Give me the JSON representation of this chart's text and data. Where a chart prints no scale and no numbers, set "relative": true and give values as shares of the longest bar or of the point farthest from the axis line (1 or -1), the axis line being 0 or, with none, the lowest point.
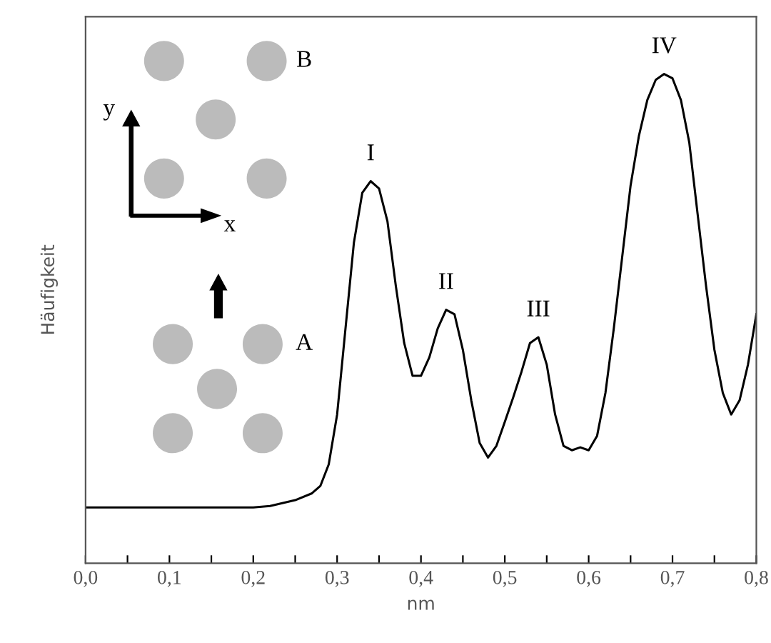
{
  "chart_data": {
    "type": "line",
    "relative": true,
    "xlabel": "nm",
    "ylabel": "Häufigkeit",
    "color": "#000000",
    "xlim": [
      0,
      0.8
    ],
    "xticks": [
      {
        "value": 0,
        "label": "0,0"
      },
      {
        "value": 0.05,
        "label": null
      },
      {
        "value": 0.1,
        "label": "0,1"
      },
      {
        "value": 0.15,
        "label": null
      },
      {
        "value": 0.2,
        "label": "0,2"
      },
      {
        "value": 0.25,
        "label": null
      },
      {
        "value": 0.3,
        "label": "0,3"
      },
      {
        "value": 0.35,
        "label": null
      },
      {
        "value": 0.4,
        "label": "0,4"
      },
      {
        "value": 0.45,
        "label": null
      },
      {
        "value": 0.5,
        "label": "0,5"
      },
      {
        "value": 0.55,
        "label": null
      },
      {
        "value": 0.6,
        "label": "0,6"
      },
      {
        "value": 0.65,
        "label": null
      },
      {
        "value": 0.7,
        "label": "0,7"
      },
      {
        "value": 0.75,
        "label": null
      },
      {
        "value": 0.8,
        "label": "0,8"
      }
    ],
    "x": [
      0,
      0.2,
      0.22,
      0.25,
      0.27,
      0.28,
      0.29,
      0.3,
      0.31,
      0.32,
      0.33,
      0.34,
      0.35,
      0.36,
      0.37,
      0.38,
      0.39,
      0.4,
      0.41,
      0.42,
      0.43,
      0.44,
      0.45,
      0.46,
      0.47,
      0.48,
      0.49,
      0.5,
      0.51,
      0.52,
      0.53,
      0.54,
      0.55,
      0.56,
      0.57,
      0.58,
      0.59,
      0.6,
      0.61,
      0.62,
      0.63,
      0.64,
      0.65,
      0.66,
      0.67,
      0.68,
      0.69,
      0.7,
      0.71,
      0.72,
      0.73,
      0.74,
      0.75,
      0.76,
      0.77,
      0.78,
      0.79,
      0.8
    ],
    "values": [
      0.114,
      0.114,
      0.117,
      0.129,
      0.143,
      0.158,
      0.202,
      0.304,
      0.48,
      0.655,
      0.757,
      0.781,
      0.766,
      0.699,
      0.567,
      0.45,
      0.383,
      0.383,
      0.421,
      0.48,
      0.518,
      0.509,
      0.436,
      0.333,
      0.246,
      0.216,
      0.24,
      0.289,
      0.339,
      0.392,
      0.45,
      0.462,
      0.406,
      0.304,
      0.24,
      0.231,
      0.237,
      0.231,
      0.26,
      0.348,
      0.48,
      0.626,
      0.772,
      0.874,
      0.947,
      0.988,
      1,
      0.991,
      0.947,
      0.86,
      0.713,
      0.567,
      0.436,
      0.348,
      0.304,
      0.333,
      0.406,
      0.509
    ],
    "annotations": [
      {
        "text": "I",
        "x": 0.34,
        "y": 0.781
      },
      {
        "text": "II",
        "x": 0.43,
        "y": 0.518
      },
      {
        "text": "III",
        "x": 0.54,
        "y": 0.462
      },
      {
        "text": "IV",
        "x": 0.69,
        "y": 1
      },
      "B",
      "A",
      "y",
      "x"
    ]
  }
}
